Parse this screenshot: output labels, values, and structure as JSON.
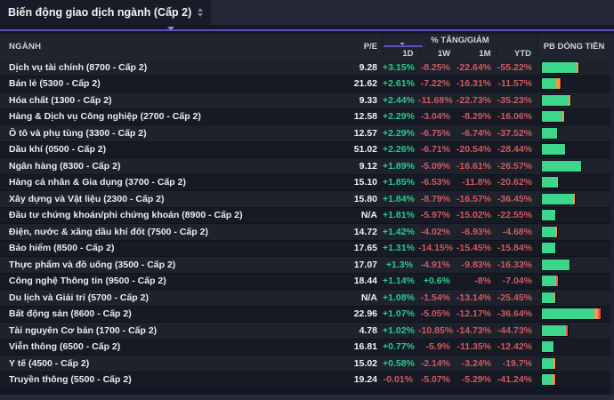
{
  "title": "Biến động giao dịch ngành (Cấp 2)",
  "header": {
    "sector": "NGÀNH",
    "pe": "P/E",
    "change_group": "% TĂNG/GIẢM",
    "sub_1d": "1D",
    "sub_1w": "1W",
    "sub_1m": "1M",
    "sub_ytd": "YTD",
    "pb": "PB DÒNG TIỀN"
  },
  "colors": {
    "positive": "#2bc98a",
    "negative": "#d05a5e",
    "bar_green": "#3cd68d",
    "bar_orange": "#f59b40",
    "bar_red": "#ef5350",
    "accent_purple": "#5950c5"
  },
  "rows": [
    {
      "name": "Dịch vụ tài chính (8700 - Cấp 2)",
      "pe": "9.28",
      "d1": "+3.15%",
      "w1": "-8.25%",
      "m1": "-22.64%",
      "ytd": "-55.22%",
      "bar": {
        "g": 39,
        "o": 2,
        "r": 0
      }
    },
    {
      "name": "Bán lẻ (5300 - Cấp 2)",
      "pe": "21.62",
      "d1": "+2.61%",
      "w1": "-7.22%",
      "m1": "-16.31%",
      "ytd": "-11.57%",
      "bar": {
        "g": 16,
        "o": 4,
        "r": 1
      }
    },
    {
      "name": "Hóa chất (1300 - Cấp 2)",
      "pe": "9.33",
      "d1": "+2.44%",
      "w1": "-11.68%",
      "m1": "-22.73%",
      "ytd": "-35.23%",
      "bar": {
        "g": 30,
        "o": 2,
        "r": 0
      }
    },
    {
      "name": "Hàng & Dịch vụ Công nghiệp (2700 - Cấp 2)",
      "pe": "12.58",
      "d1": "+2.29%",
      "w1": "-3.04%",
      "m1": "-8.29%",
      "ytd": "-16.06%",
      "bar": {
        "g": 23,
        "o": 2,
        "r": 0
      }
    },
    {
      "name": "Ô tô và phụ tùng (3300 - Cấp 2)",
      "pe": "12.57",
      "d1": "+2.29%",
      "w1": "-6.75%",
      "m1": "-6.74%",
      "ytd": "-37.52%",
      "bar": {
        "g": 17,
        "o": 0,
        "r": 0
      }
    },
    {
      "name": "Dầu khí (0500 - Cấp 2)",
      "pe": "51.02",
      "d1": "+2.26%",
      "w1": "-6.71%",
      "m1": "-20.54%",
      "ytd": "-28.44%",
      "bar": {
        "g": 26,
        "o": 0,
        "r": 0
      }
    },
    {
      "name": "Ngân hàng (8300 - Cấp 2)",
      "pe": "9.12",
      "d1": "+1.89%",
      "w1": "-5.09%",
      "m1": "-16.61%",
      "ytd": "-26.57%",
      "bar": {
        "g": 44,
        "o": 0,
        "r": 0
      }
    },
    {
      "name": "Hàng cá nhân & Gia dụng (3700 - Cấp 2)",
      "pe": "15.10",
      "d1": "+1.85%",
      "w1": "-6.53%",
      "m1": "-11.8%",
      "ytd": "-20.62%",
      "bar": {
        "g": 17,
        "o": 1,
        "r": 0
      }
    },
    {
      "name": "Xây dựng và Vật liệu (2300 - Cấp 2)",
      "pe": "15.80",
      "d1": "+1.84%",
      "w1": "-8.79%",
      "m1": "-16.57%",
      "ytd": "-36.45%",
      "bar": {
        "g": 35,
        "o": 2,
        "r": 0
      }
    },
    {
      "name": "Đầu tư chứng khoán/phi chứng khoán (8900 - Cấp 2)",
      "pe": "N/A",
      "d1": "+1.81%",
      "w1": "-5.97%",
      "m1": "-15.02%",
      "ytd": "-22.55%",
      "bar": {
        "g": 15,
        "o": 0,
        "r": 0
      }
    },
    {
      "name": "Điện, nước & xăng dầu khí đốt (7500 - Cấp 2)",
      "pe": "14.72",
      "d1": "+1.42%",
      "w1": "-4.02%",
      "m1": "-6.93%",
      "ytd": "-4.68%",
      "bar": {
        "g": 15,
        "o": 2,
        "r": 0
      }
    },
    {
      "name": "Bảo hiểm (8500 - Cấp 2)",
      "pe": "17.65",
      "d1": "+1.31%",
      "w1": "-14.15%",
      "m1": "-15.45%",
      "ytd": "-15.84%",
      "bar": {
        "g": 15,
        "o": 0,
        "r": 0
      }
    },
    {
      "name": "Thực phẩm và đồ uống (3500 - Cấp 2)",
      "pe": "17.07",
      "d1": "+1.3%",
      "w1": "-4.91%",
      "m1": "-9.83%",
      "ytd": "-16.33%",
      "bar": {
        "g": 31,
        "o": 0,
        "r": 0
      }
    },
    {
      "name": "Công nghệ Thông tin (9500 - Cấp 2)",
      "pe": "18.44",
      "d1": "+1.14%",
      "w1": "+0.6%",
      "m1": "-8%",
      "ytd": "-7.04%",
      "bar": {
        "g": 15,
        "o": 1,
        "r": 2
      }
    },
    {
      "name": "Du lịch và Giải trí (5700 - Cấp 2)",
      "pe": "N/A",
      "d1": "+1.08%",
      "w1": "-1.54%",
      "m1": "-13.14%",
      "ytd": "-25.45%",
      "bar": {
        "g": 14,
        "o": 1,
        "r": 0
      }
    },
    {
      "name": "Bất động sản (8600 - Cấp 2)",
      "pe": "22.96",
      "d1": "+1.07%",
      "w1": "-5.05%",
      "m1": "-12.17%",
      "ytd": "-36.64%",
      "bar": {
        "g": 59,
        "o": 4,
        "r": 3
      }
    },
    {
      "name": "Tài nguyên Cơ bản (1700 - Cấp 2)",
      "pe": "4.78",
      "d1": "+1.02%",
      "w1": "-10.85%",
      "m1": "-14.73%",
      "ytd": "-44.73%",
      "bar": {
        "g": 26,
        "o": 1,
        "r": 2
      }
    },
    {
      "name": "Viễn thông (6500 - Cấp 2)",
      "pe": "16.81",
      "d1": "+0.77%",
      "w1": "-5.9%",
      "m1": "-11.35%",
      "ytd": "-12.42%",
      "bar": {
        "g": 13,
        "o": 0,
        "r": 0
      }
    },
    {
      "name": "Y tế (4500 - Cấp 2)",
      "pe": "15.02",
      "d1": "+0.58%",
      "w1": "-2.14%",
      "m1": "-3.24%",
      "ytd": "-19.7%",
      "bar": {
        "g": 13,
        "o": 2,
        "r": 0
      }
    },
    {
      "name": "Truyền thông (5500 - Cấp 2)",
      "pe": "19.24",
      "d1": "-0.01%",
      "w1": "-5.07%",
      "m1": "-5.29%",
      "ytd": "-41.24%",
      "bar": {
        "g": 12,
        "o": 2,
        "r": 1
      }
    }
  ]
}
